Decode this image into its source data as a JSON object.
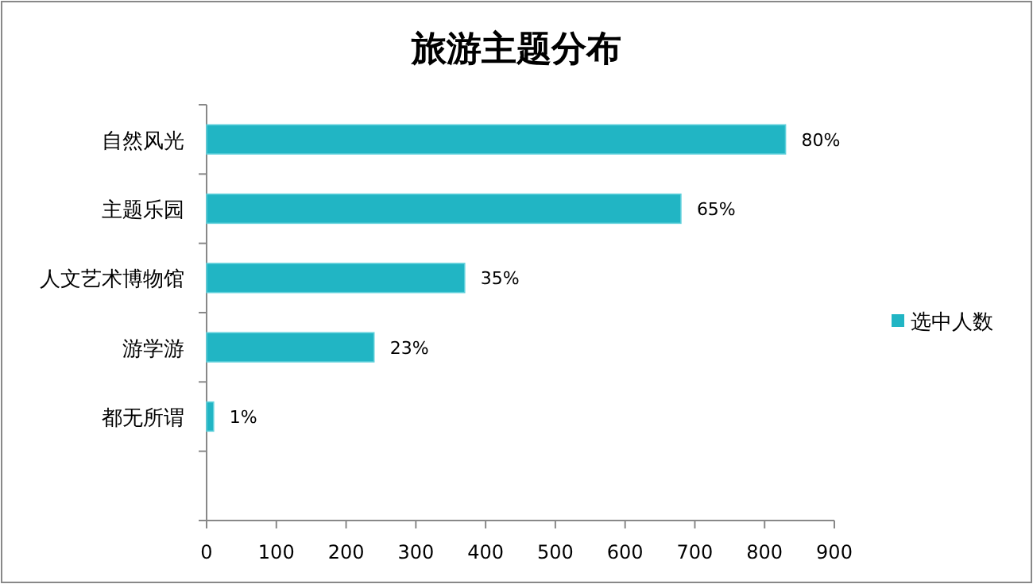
{
  "chart_data": {
    "type": "bar",
    "orientation": "horizontal",
    "title": "旅游主题分布",
    "categories": [
      "自然风光",
      "主题乐园",
      "人文艺术博物馆",
      "游学游",
      "都无所谓",
      null
    ],
    "series": [
      {
        "name": "选中人数",
        "color": "#21b5c4",
        "values": [
          830,
          680,
          370,
          240,
          10,
          null
        ]
      }
    ],
    "annotations": [
      {
        "text": "80%",
        "x": 830,
        "y": "自然风光"
      },
      {
        "text": "65%",
        "x": 680,
        "y": "主题乐园"
      },
      {
        "text": "35%",
        "x": 370,
        "y": "人文艺术博物馆"
      },
      {
        "text": "23%",
        "x": 240,
        "y": "游学游"
      },
      {
        "text": "1%",
        "x": 10,
        "y": "都无所谓"
      }
    ],
    "xlim": [
      0,
      900
    ],
    "xticks": [
      0,
      100,
      200,
      300,
      400,
      500,
      600,
      700,
      800,
      900
    ],
    "grid": false,
    "legend": "right"
  }
}
